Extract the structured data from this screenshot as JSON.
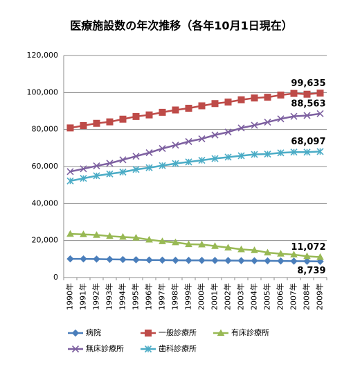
{
  "chart_data": {
    "type": "line",
    "title": "医療施設数の年次推移（各年10月1日現在）",
    "categories": [
      "1990年",
      "1991年",
      "1992年",
      "1993年",
      "1994年",
      "1995年",
      "1996年",
      "1997年",
      "1998年",
      "1999年",
      "2000年",
      "2001年",
      "2002年",
      "2003年",
      "2004年",
      "2005年",
      "2006年",
      "2007年",
      "2008年",
      "2009年"
    ],
    "ylim": [
      0,
      120000
    ],
    "yticks": [
      0,
      {
        "value": 20000,
        "label": "20,000"
      },
      {
        "value": 40000,
        "label": "40,000"
      },
      {
        "value": 60000,
        "label": "60,000"
      },
      {
        "value": 80000,
        "label": "80,000"
      },
      {
        "value": 100000,
        "label": "100,000"
      },
      {
        "value": 120000,
        "label": "120,000"
      }
    ],
    "grid": true,
    "legend": "bottom",
    "series": [
      {
        "name": "病院",
        "color": "#4a7ebb",
        "marker": "diamond",
        "values": [
          10096,
          10066,
          9963,
          9844,
          9731,
          9606,
          9490,
          9413,
          9333,
          9286,
          9266,
          9239,
          9187,
          9122,
          9077,
          9026,
          8943,
          8862,
          8794,
          8739
        ],
        "value_labels": [
          null,
          null,
          null,
          null,
          null,
          null,
          null,
          null,
          null,
          null,
          null,
          null,
          null,
          null,
          null,
          null,
          null,
          null,
          null,
          "8,739"
        ]
      },
      {
        "name": "一般診療所",
        "color": "#be4b48",
        "marker": "square",
        "values": [
          80852,
          82118,
          83338,
          84128,
          85588,
          87069,
          87909,
          89292,
          90556,
          91500,
          92824,
          94019,
          94819,
          96050,
          97051,
          97442,
          98609,
          99532,
          99083,
          99635
        ],
        "value_labels": [
          null,
          null,
          null,
          null,
          null,
          null,
          null,
          null,
          null,
          null,
          null,
          null,
          null,
          null,
          null,
          null,
          null,
          null,
          null,
          "99,635"
        ]
      },
      {
        "name": "有床診療所",
        "color": "#98b954",
        "marker": "triangle",
        "values": [
          23589,
          23359,
          22994,
          22383,
          21960,
          21505,
          20452,
          19582,
          19000,
          18000,
          17853,
          17000,
          16178,
          15236,
          14765,
          13477,
          12858,
          12399,
          11500,
          11072
        ],
        "value_labels": [
          null,
          null,
          null,
          null,
          null,
          null,
          null,
          null,
          null,
          null,
          null,
          null,
          null,
          null,
          null,
          null,
          null,
          null,
          null,
          "11,072"
        ]
      },
      {
        "name": "無床診療所",
        "color": "#7d60a0",
        "marker": "x",
        "values": [
          57263,
          58759,
          60344,
          61745,
          63628,
          65564,
          67457,
          69710,
          71556,
          73500,
          74971,
          77019,
          78641,
          80814,
          82286,
          83965,
          85751,
          87133,
          87583,
          88563
        ],
        "value_labels": [
          null,
          null,
          null,
          null,
          null,
          null,
          null,
          null,
          null,
          null,
          null,
          null,
          null,
          null,
          null,
          null,
          null,
          null,
          null,
          "88,563"
        ]
      },
      {
        "name": "歯科診療所",
        "color": "#4bacc6",
        "marker": "star",
        "values": [
          52216,
          53580,
          55000,
          56000,
          57000,
          58407,
          59357,
          60500,
          61600,
          62484,
          63361,
          64297,
          65073,
          65828,
          66557,
          66732,
          67392,
          67798,
          67779,
          68097
        ],
        "value_labels": [
          null,
          null,
          null,
          null,
          null,
          null,
          null,
          null,
          null,
          null,
          null,
          null,
          null,
          null,
          null,
          null,
          null,
          null,
          null,
          "68,097"
        ]
      }
    ]
  }
}
